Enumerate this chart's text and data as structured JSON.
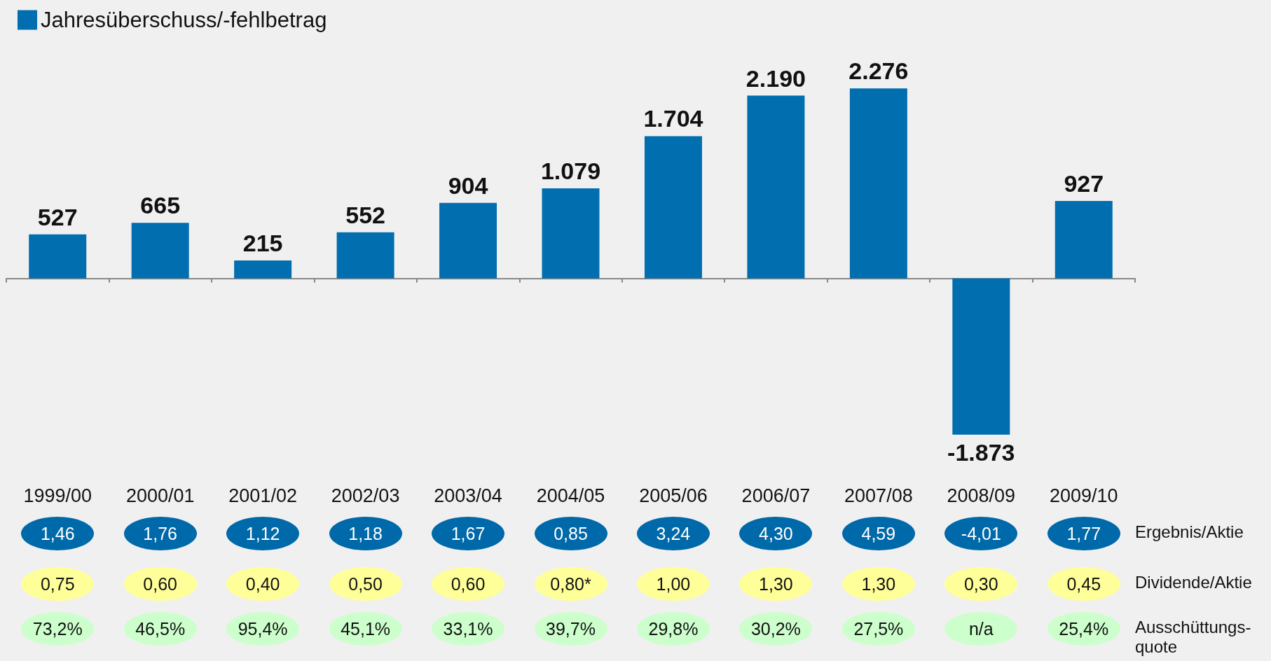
{
  "chart_data": {
    "type": "bar",
    "categories": [
      "1999/00",
      "2000/01",
      "2001/02",
      "2002/03",
      "2003/04",
      "2004/05",
      "2005/06",
      "2006/07",
      "2007/08",
      "2008/09",
      "2009/10"
    ],
    "series": [
      {
        "name": "Jahresüberschuss/-fehlbetrag",
        "color": "#006eaf",
        "values": [
          527,
          665,
          215,
          552,
          904,
          1079,
          1704,
          2190,
          2276,
          -1873,
          927
        ],
        "value_labels": [
          "527",
          "665",
          "215",
          "552",
          "904",
          "1.079",
          "1.704",
          "2.190",
          "2.276",
          "-1.873",
          "927"
        ]
      }
    ],
    "legend": "top left",
    "annotations": [
      "1,46",
      "1,76",
      "1,12",
      "1,18",
      "1,67",
      "0,85",
      "3,24",
      "4,30",
      "4,59",
      "-4,01",
      "1,77",
      "Ergebnis/Aktie",
      "0,75",
      "0,60",
      "0,40",
      "0,50",
      "0,60",
      "0,80*",
      "1,00",
      "1,30",
      "1,30",
      "0,30",
      "0,45",
      "Dividende/Aktie",
      "73,2%",
      "46,5%",
      "95,4%",
      "45,1%",
      "33,1%",
      "39,7%",
      "29,8%",
      "30,2%",
      "27,5%",
      "n/a",
      "25,4%",
      "Ausschüttungs-quote"
    ]
  }
}
